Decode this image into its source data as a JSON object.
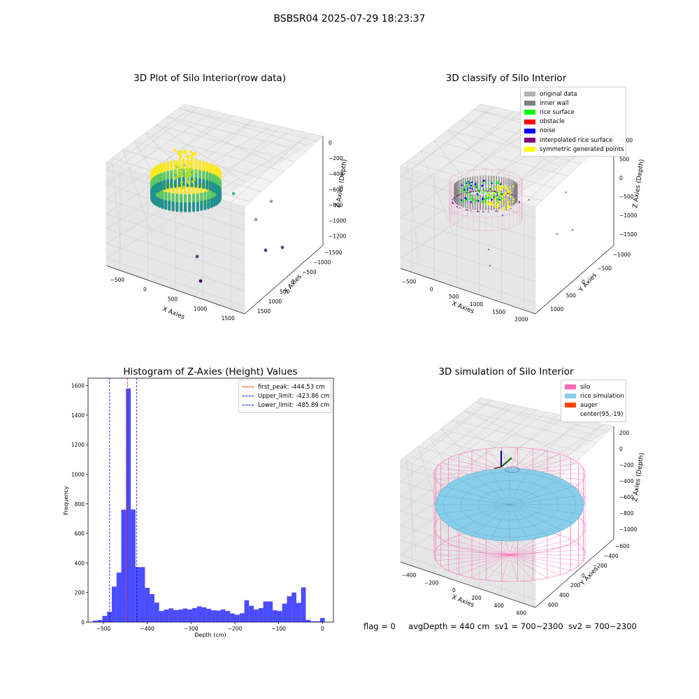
{
  "suptitle": "BSBSR04 2025-07-29 18:23:37",
  "chart_data": [
    {
      "type": "scatter",
      "projection": "3d",
      "title": "3D Plot of Silo Interior(row data)",
      "xlabel": "X Axies",
      "ylabel": "Y Axies",
      "zlabel": "Z Axies (Depth)",
      "x_ticks": [
        "−500",
        "0",
        "500",
        "1000",
        "1500"
      ],
      "y_ticks": [
        "−1500",
        "−1000",
        "−500",
        "0",
        "500",
        "1000",
        "1500"
      ],
      "z_ticks": [
        "0",
        "−200",
        "−400",
        "−600",
        "−800",
        "−1000",
        "−1200"
      ],
      "colormap": "viridis (colored by depth)",
      "grid": true,
      "outlier_points": [
        {
          "x": 400,
          "y": 200,
          "z": -800
        },
        {
          "x": 1100,
          "y": 900,
          "z": -950
        },
        {
          "x": 1500,
          "y": 600,
          "z": -1050
        },
        {
          "x": 800,
          "y": 300,
          "z": -900
        },
        {
          "x": 1400,
          "y": -100,
          "z": -1150
        },
        {
          "x": 700,
          "y": -400,
          "z": -1200
        },
        {
          "x": 900,
          "y": -700,
          "z": -1250
        }
      ]
    },
    {
      "type": "scatter",
      "projection": "3d",
      "title": "3D classify of Silo Interior",
      "xlabel": "X Axies",
      "ylabel": "Y Axies",
      "zlabel": "Z Axies (Depth)",
      "x_ticks": [
        "−500",
        "0",
        "500",
        "1000",
        "1500",
        "2000"
      ],
      "y_ticks": [
        "−1000",
        "−500",
        "0",
        "500",
        "1000"
      ],
      "z_ticks": [
        "1000",
        "500",
        "0",
        "−500",
        "−1000",
        "−1500"
      ],
      "legend_position": "top-right",
      "series": [
        {
          "name": "original data",
          "color": "#b3b3b3"
        },
        {
          "name": "inner wall",
          "color": "#808080"
        },
        {
          "name": "rice surface",
          "color": "#00ff00"
        },
        {
          "name": "obstacle",
          "color": "#ff0000"
        },
        {
          "name": "noise",
          "color": "#0000ff"
        },
        {
          "name": "interpolated rice surface",
          "color": "#800080"
        },
        {
          "name": "symmetric generated points",
          "color": "#ffff00"
        }
      ],
      "grid": true
    },
    {
      "type": "bar",
      "title": "Histogram of Z-Axies (Height) Values",
      "xlabel": "Depth (cm)",
      "ylabel": "Frequency",
      "xlim": [
        -535,
        25
      ],
      "ylim": [
        0,
        1650
      ],
      "x_ticks": [
        -500,
        -400,
        -300,
        -200,
        -100,
        0
      ],
      "y_ticks": [
        0,
        200,
        400,
        600,
        800,
        1000,
        1200,
        1400,
        1600
      ],
      "bin_width": 10.8,
      "bin_start": -524,
      "values": [
        10,
        14,
        42,
        70,
        240,
        335,
        760,
        1580,
        762,
        372,
        372,
        232,
        190,
        132,
        75,
        85,
        93,
        82,
        85,
        92,
        86,
        95,
        106,
        100,
        90,
        80,
        78,
        85,
        75,
        58,
        50,
        60,
        148,
        110,
        85,
        95,
        140,
        140,
        80,
        75,
        125,
        175,
        200,
        130,
        235,
        15,
        5,
        5,
        28
      ],
      "bar_color": "#0000ff",
      "bar_alpha": 0.7,
      "grid": false,
      "legend_position": "top-right",
      "vlines": [
        {
          "label": "first_peak: -444.53 cm",
          "x": -444.53,
          "color": "#ff0000"
        },
        {
          "label": "Upper_limit: -423.86 cm",
          "x": -423.86,
          "color": "#0000ff"
        },
        {
          "label": "Lower_limit: -485.89 cm",
          "x": -485.89,
          "color": "#0000ff"
        }
      ]
    },
    {
      "type": "scatter",
      "projection": "3d",
      "title": "3D simulation of Silo Interior",
      "xlabel": "X Axies",
      "ylabel": "Y Axies",
      "zlabel": "Z Axies (Depth)",
      "x_ticks": [
        "−400",
        "−200",
        "0",
        "200",
        "400",
        "600"
      ],
      "y_ticks": [
        "−600",
        "−400",
        "−200",
        "0",
        "200",
        "400",
        "600"
      ],
      "z_ticks": [
        "200",
        "0",
        "−200",
        "−400",
        "−600",
        "−800",
        "−1000"
      ],
      "legend_position": "top-right",
      "series": [
        {
          "name": "silo",
          "color": "#ff69b4"
        },
        {
          "name": "rice simulation",
          "color": "#87ceeb"
        },
        {
          "name": "auger",
          "color": "#ff4500"
        },
        {
          "name": "center(95,-19)",
          "color": ""
        }
      ],
      "grid": true
    }
  ],
  "footer": {
    "flag": "flag = 0",
    "avg_depth": "avgDepth = 440 cm",
    "sv1": "sv1 = 700~2300",
    "sv2": "sv2 = 700~2300"
  }
}
